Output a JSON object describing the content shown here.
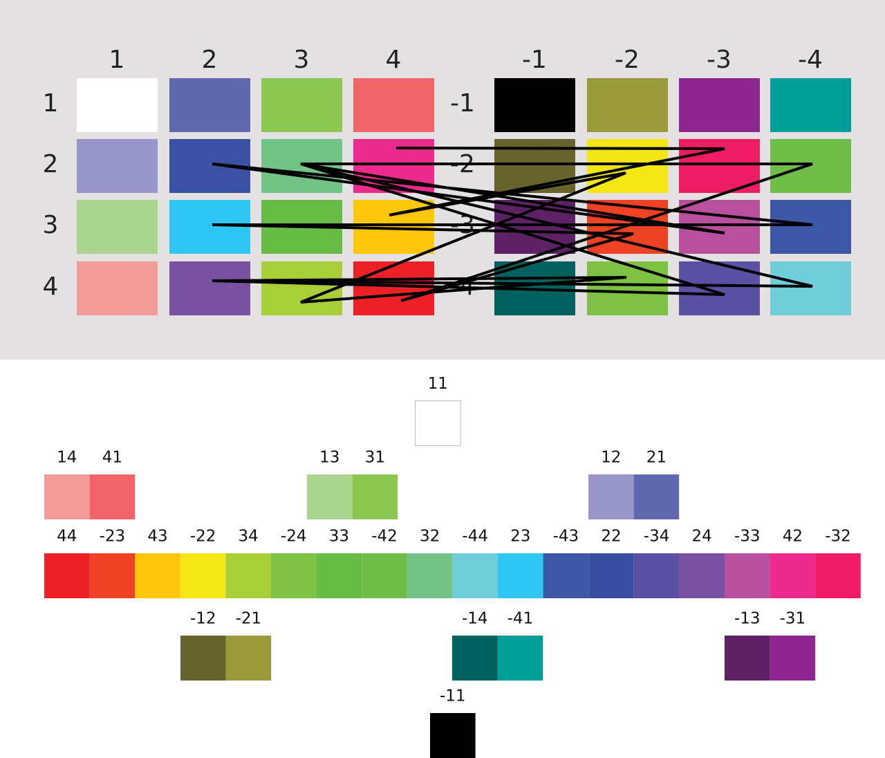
{
  "grid_left": {
    "column_labels": [
      "1",
      "2",
      "3",
      "4"
    ],
    "row_labels": [
      "1",
      "2",
      "3",
      "4"
    ],
    "cells": [
      [
        "#ffffff",
        "#6268ae",
        "#8cc751",
        "#f1646a"
      ],
      [
        "#9996cb",
        "#3b52a4",
        "#71c386",
        "#ec2a8d"
      ],
      [
        "#aad58f",
        "#2fc6f4",
        "#67bc45",
        "#fec70a"
      ],
      [
        "#f39a9b",
        "#7851a1",
        "#a8cf38",
        "#ec2128"
      ]
    ]
  },
  "grid_right": {
    "column_labels": [
      "-1",
      "-2",
      "-3",
      "-4"
    ],
    "row_labels": [
      "-1",
      "-2",
      "-3",
      "-4"
    ],
    "cells": [
      [
        "#000000",
        "#999a3a",
        "#8e268f",
        "#009e99"
      ],
      [
        "#66642c",
        "#f3e614",
        "#ed1c64",
        "#6fbe4a"
      ],
      [
        "#5f2166",
        "#ef4123",
        "#b9509e",
        "#3b57a5"
      ],
      [
        "#00615f",
        "#7dc242",
        "#5a51a2",
        "#72cddb"
      ]
    ]
  },
  "center": {
    "label": "11",
    "color": "#ffffff"
  },
  "upper_pairs": [
    {
      "labels": [
        "14",
        "41"
      ],
      "colors": [
        "#f39a9b",
        "#f1646a"
      ]
    },
    {
      "labels": [
        "13",
        "31"
      ],
      "colors": [
        "#aad58f",
        "#8cc751"
      ]
    },
    {
      "labels": [
        "12",
        "21"
      ],
      "colors": [
        "#9996cb",
        "#6268ae"
      ]
    }
  ],
  "spectrum": {
    "labels": [
      "44",
      "-23",
      "43",
      "-22",
      "34",
      "-24",
      "33",
      "-42",
      "32",
      "-44",
      "23",
      "-43",
      "22",
      "-34",
      "24",
      "-33",
      "42",
      "-32"
    ],
    "colors": [
      "#ec2128",
      "#ef4123",
      "#fec70a",
      "#f3e614",
      "#a8cf38",
      "#7dc242",
      "#67bc45",
      "#6fbe4a",
      "#72c286",
      "#72cddb",
      "#2fc6f4",
      "#3b57a5",
      "#3a4fa1",
      "#5a51a2",
      "#7851a1",
      "#b9509e",
      "#ec2a8d",
      "#ed1c64"
    ]
  },
  "lower_pairs": [
    {
      "labels": [
        "-12",
        "-21"
      ],
      "colors": [
        "#66642c",
        "#999a3a"
      ]
    },
    {
      "labels": [
        "-14",
        "-41"
      ],
      "colors": [
        "#00615f",
        "#009e99"
      ]
    },
    {
      "labels": [
        "-13",
        "-31"
      ],
      "colors": [
        "#5f2166",
        "#8e268f"
      ]
    }
  ],
  "bottom": {
    "label": "-11",
    "color": "#000000"
  }
}
